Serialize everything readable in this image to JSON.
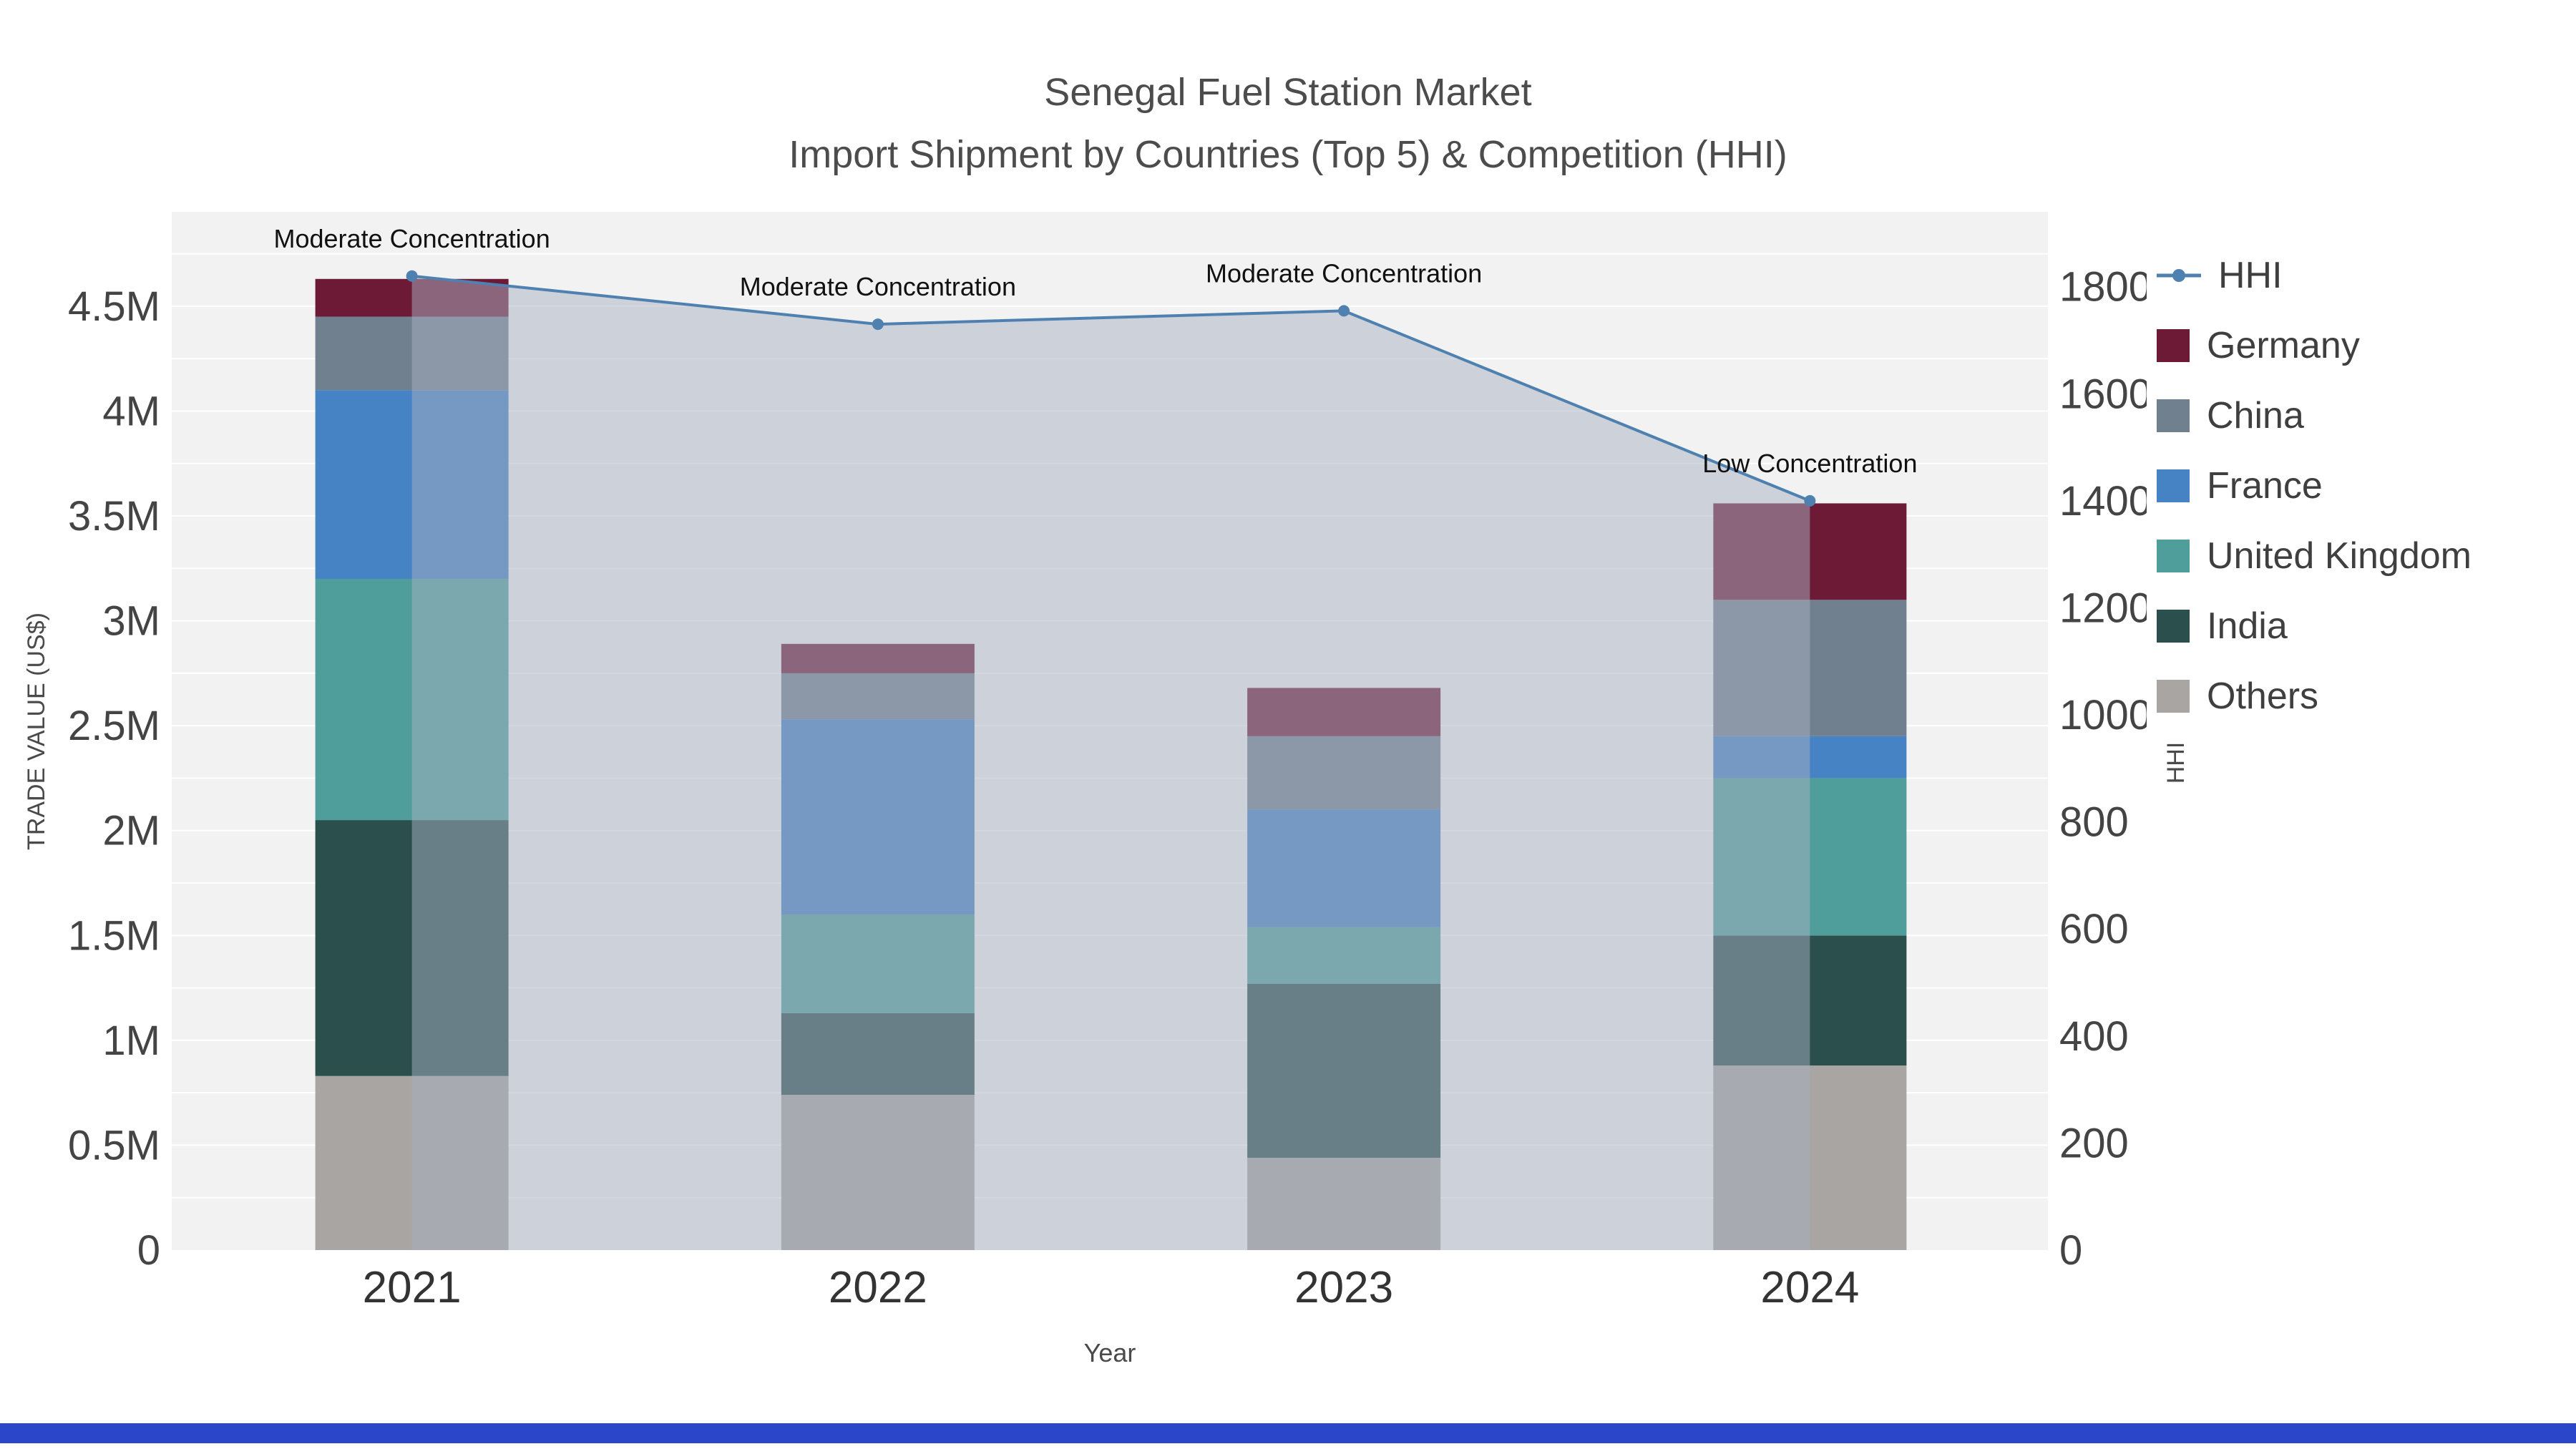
{
  "figure": {
    "title_line1": "Senegal Fuel Station Market",
    "title_line2": "Import Shipment by Countries (Top 5) & Competition (HHI)",
    "xlabel": "Year",
    "ylabel_left": "TRADE VALUE (US$)",
    "ylabel_right": "HHI"
  },
  "chart_data": {
    "type": "bar",
    "subtype": "stacked-bars-with-line-area",
    "categories": [
      "2021",
      "2022",
      "2023",
      "2024"
    ],
    "unit": "millions US$",
    "bar_series": [
      {
        "name": "Others",
        "color": "#a8a5a2",
        "values": [
          0.83,
          0.74,
          0.44,
          0.88
        ]
      },
      {
        "name": "India",
        "color": "#2a4f4c",
        "values": [
          1.22,
          0.39,
          0.83,
          0.62
        ]
      },
      {
        "name": "United Kingdom",
        "color": "#4f9e9b",
        "values": [
          1.15,
          0.47,
          0.27,
          0.75
        ]
      },
      {
        "name": "France",
        "color": "#4583c4",
        "values": [
          0.9,
          0.93,
          0.56,
          0.2
        ]
      },
      {
        "name": "China",
        "color": "#71808f",
        "values": [
          0.35,
          0.22,
          0.35,
          0.65
        ]
      },
      {
        "name": "Germany",
        "color": "#6d1a36",
        "values": [
          0.18,
          0.14,
          0.23,
          0.46
        ]
      }
    ],
    "line_series": {
      "name": "HHI",
      "color": "#4f81b0",
      "fill": "#a7b0c2",
      "fill_opacity": 0.5,
      "values": [
        1820,
        1730,
        1755,
        1400
      ]
    },
    "annotations": [
      {
        "index": 0,
        "text": "Moderate Concentration"
      },
      {
        "index": 1,
        "text": "Moderate Concentration"
      },
      {
        "index": 2,
        "text": "Moderate Concentration"
      },
      {
        "index": 3,
        "text": "Low Concentration"
      }
    ],
    "left_axis": {
      "ticks": [
        0,
        0.5,
        1,
        1.5,
        2,
        2.5,
        3,
        3.5,
        4,
        4.5
      ],
      "labels": [
        "0",
        "0.5M",
        "1M",
        "1.5M",
        "2M",
        "2.5M",
        "3M",
        "3.5M",
        "4M",
        "4.5M"
      ],
      "max": 4.95
    },
    "right_axis": {
      "ticks": [
        0,
        200,
        400,
        600,
        800,
        1000,
        1200,
        1400,
        1600,
        1800
      ],
      "labels": [
        "0",
        "200",
        "400",
        "600",
        "800",
        "1000",
        "1200",
        "1400",
        "1600",
        "1800"
      ],
      "max": 1940
    },
    "legend": [
      "HHI",
      "Germany",
      "China",
      "France",
      "United Kingdom",
      "India",
      "Others"
    ],
    "colors": {
      "plot_background": "#f2f2f2",
      "gridline": "#ffffff",
      "footer_strip": "#2b46c8"
    }
  }
}
